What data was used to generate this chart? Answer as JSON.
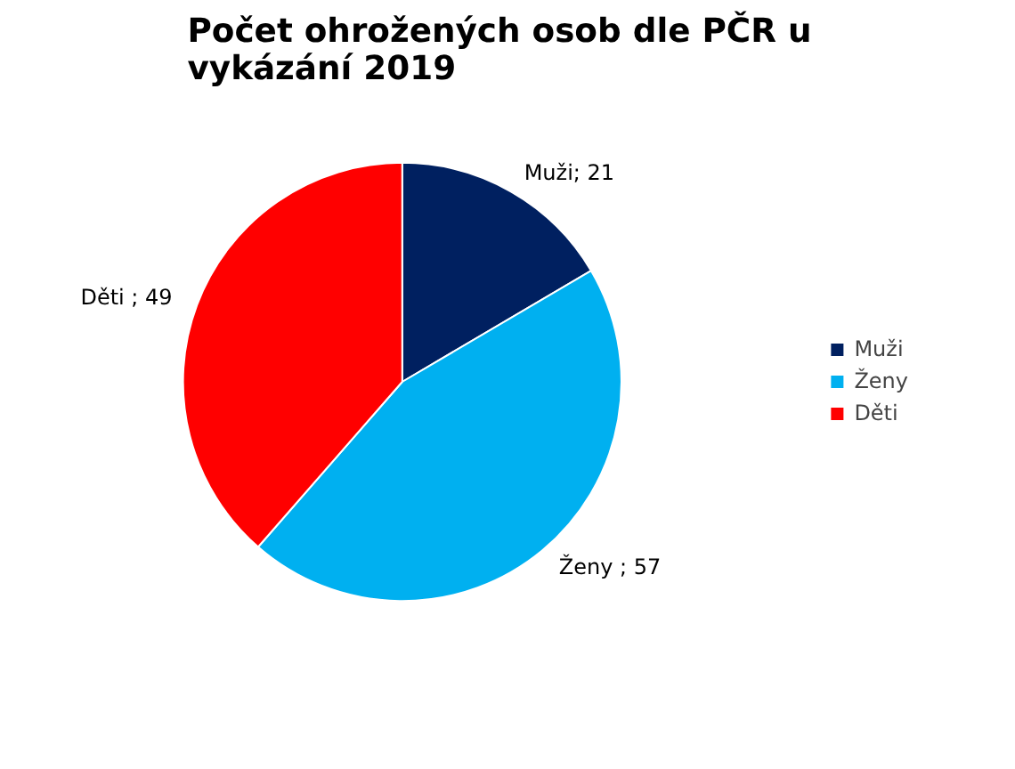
{
  "chart_data": {
    "type": "pie",
    "title": "Počet ohrožených osob dle PČR u vykázání 2019",
    "categories": [
      "Muži",
      "Ženy",
      "Děti"
    ],
    "values": [
      21,
      57,
      49
    ],
    "colors": [
      "#002060",
      "#00b0f0",
      "#ff0000"
    ],
    "value_labels": [
      "Muži; 21",
      "Ženy ; 57",
      "Děti ; 49"
    ],
    "legend": "right"
  }
}
